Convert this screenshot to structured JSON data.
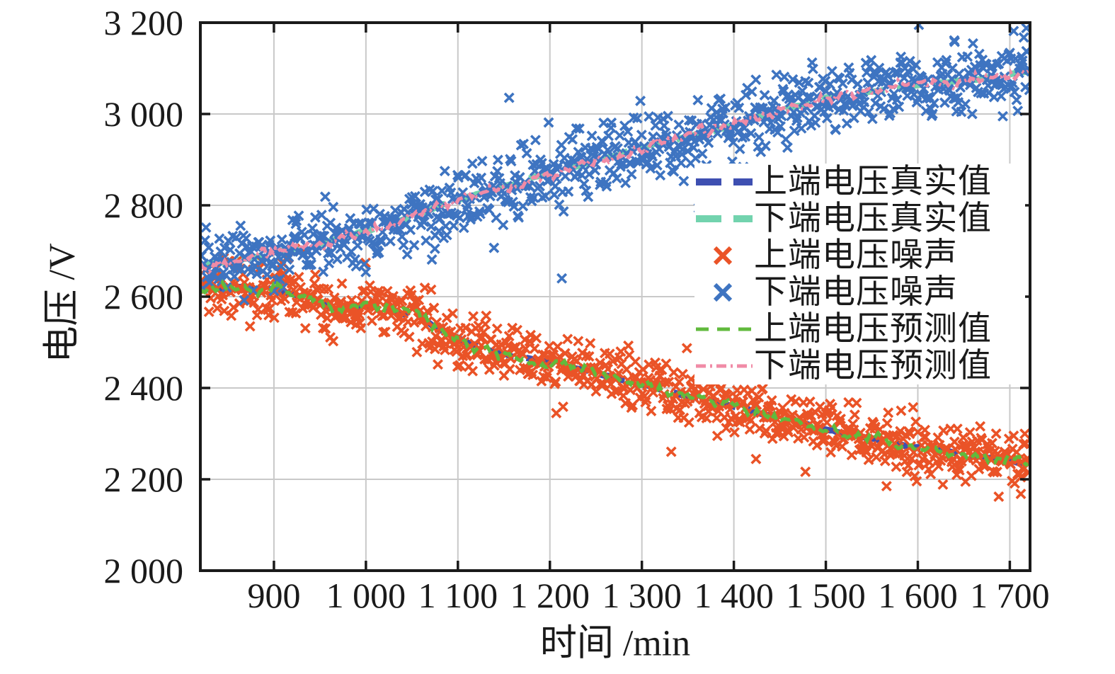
{
  "chart_data": {
    "type": "scatter",
    "title": "",
    "xlabel": "时间 /min",
    "ylabel": "电压 /V",
    "xlim": [
      820,
      1722
    ],
    "ylim": [
      2000,
      3200
    ],
    "grid": true,
    "legend_position": "right-center",
    "xticks": {
      "values": [
        900,
        1000,
        1100,
        1200,
        1300,
        1400,
        1500,
        1600,
        1700
      ],
      "labels": [
        "900",
        "1 000",
        "1 100",
        "1 200",
        "1 300",
        "1 400",
        "1 500",
        "1 600",
        "1 700"
      ]
    },
    "yticks": {
      "values": [
        2000,
        2200,
        2400,
        2600,
        2800,
        3000,
        3200
      ],
      "labels": [
        "2 000",
        "2 200",
        "2 400",
        "2 600",
        "2 800",
        "3 000",
        "3 200"
      ]
    },
    "colors": {
      "axis": "#1a1a1a",
      "grid": "#c9c9c9",
      "background": "#ffffff"
    },
    "series": [
      {
        "name": "上端电压真实值",
        "role": "true-line",
        "group": "upper",
        "color": "#3e4fb1",
        "style": "long-dash"
      },
      {
        "name": "下端电压真实值",
        "role": "true-line",
        "group": "lower",
        "color": "#72d3ae",
        "style": "long-dash"
      },
      {
        "name": "上端电压噪声",
        "role": "noise-scatter",
        "group": "upper",
        "color": "#ea5327",
        "marker": "x",
        "std": 30,
        "count": 840
      },
      {
        "name": "下端电压噪声",
        "role": "noise-scatter",
        "group": "lower",
        "color": "#3e74c1",
        "marker": "x",
        "std": 36,
        "count": 840
      },
      {
        "name": "上端电压预测值",
        "role": "predicted-line",
        "group": "upper",
        "color": "#61ba3d",
        "style": "dash"
      },
      {
        "name": "下端电压预测值",
        "role": "predicted-line",
        "group": "lower",
        "color": "#f08ba6",
        "style": "dash-dot"
      }
    ],
    "trend": {
      "x": [
        820,
        860,
        900,
        940,
        970,
        1010,
        1060,
        1110,
        1160,
        1210,
        1260,
        1310,
        1360,
        1410,
        1460,
        1510,
        1560,
        1610,
        1660,
        1700,
        1722
      ],
      "upper": [
        2618,
        2622,
        2612,
        2598,
        2568,
        2585,
        2552,
        2498,
        2468,
        2452,
        2428,
        2402,
        2378,
        2352,
        2330,
        2302,
        2286,
        2266,
        2250,
        2240,
        2232
      ],
      "lower": [
        2668,
        2678,
        2698,
        2712,
        2725,
        2752,
        2782,
        2818,
        2846,
        2876,
        2902,
        2932,
        2956,
        2982,
        3012,
        3036,
        3052,
        3066,
        3076,
        3086,
        3098
      ]
    },
    "extra_points": {
      "upper": [
        [
          874,
          2535
        ],
        [
          1207,
          2345
        ],
        [
          1566,
          2185
        ],
        [
          1688,
          2162
        ],
        [
          1712,
          2168
        ]
      ],
      "lower": [
        [
          1718,
          3188
        ],
        [
          1640,
          3158
        ],
        [
          1213,
          2640
        ],
        [
          1075,
          2705
        ]
      ]
    }
  }
}
